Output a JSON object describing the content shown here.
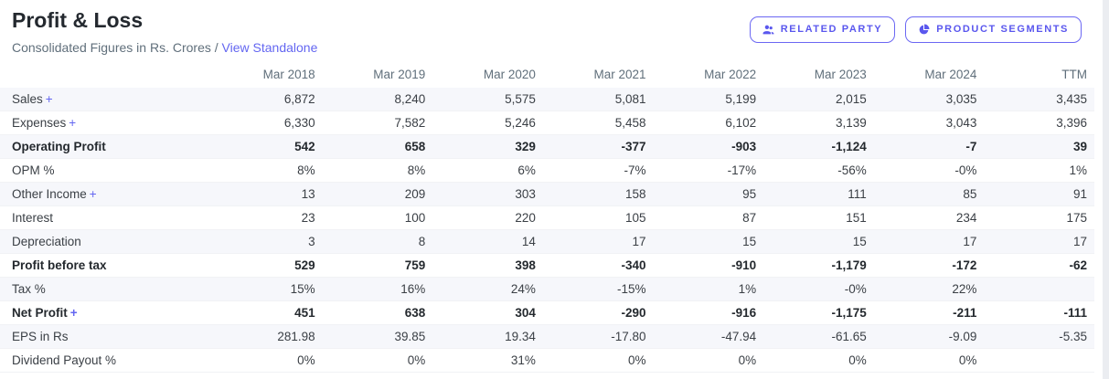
{
  "header": {
    "title": "Profit & Loss",
    "subtitle": "Consolidated Figures in Rs. Crores /",
    "standalone_link": "View Standalone",
    "buttons": [
      {
        "label": "RELATED PARTY",
        "icon": "users-icon"
      },
      {
        "label": "PRODUCT SEGMENTS",
        "icon": "pie-chart-icon"
      }
    ]
  },
  "colors": {
    "accent": "#6366f1",
    "row_stripe": "#f6f7fb",
    "button_border": "#6b67f3",
    "muted_text": "#606f7b"
  },
  "table": {
    "expand_symbol": "+",
    "columns": [
      "Mar 2018",
      "Mar 2019",
      "Mar 2020",
      "Mar 2021",
      "Mar 2022",
      "Mar 2023",
      "Mar 2024",
      "TTM"
    ],
    "rows": [
      {
        "label": "Sales",
        "expandable": true,
        "bold": false,
        "values": [
          "6,872",
          "8,240",
          "5,575",
          "5,081",
          "5,199",
          "2,015",
          "3,035",
          "3,435"
        ]
      },
      {
        "label": "Expenses",
        "expandable": true,
        "bold": false,
        "values": [
          "6,330",
          "7,582",
          "5,246",
          "5,458",
          "6,102",
          "3,139",
          "3,043",
          "3,396"
        ]
      },
      {
        "label": "Operating Profit",
        "expandable": false,
        "bold": true,
        "values": [
          "542",
          "658",
          "329",
          "-377",
          "-903",
          "-1,124",
          "-7",
          "39"
        ]
      },
      {
        "label": "OPM %",
        "expandable": false,
        "bold": false,
        "values": [
          "8%",
          "8%",
          "6%",
          "-7%",
          "-17%",
          "-56%",
          "-0%",
          "1%"
        ]
      },
      {
        "label": "Other Income",
        "expandable": true,
        "bold": false,
        "values": [
          "13",
          "209",
          "303",
          "158",
          "95",
          "111",
          "85",
          "91"
        ]
      },
      {
        "label": "Interest",
        "expandable": false,
        "bold": false,
        "values": [
          "23",
          "100",
          "220",
          "105",
          "87",
          "151",
          "234",
          "175"
        ]
      },
      {
        "label": "Depreciation",
        "expandable": false,
        "bold": false,
        "values": [
          "3",
          "8",
          "14",
          "17",
          "15",
          "15",
          "17",
          "17"
        ]
      },
      {
        "label": "Profit before tax",
        "expandable": false,
        "bold": true,
        "values": [
          "529",
          "759",
          "398",
          "-340",
          "-910",
          "-1,179",
          "-172",
          "-62"
        ]
      },
      {
        "label": "Tax %",
        "expandable": false,
        "bold": false,
        "values": [
          "15%",
          "16%",
          "24%",
          "-15%",
          "1%",
          "-0%",
          "22%",
          ""
        ]
      },
      {
        "label": "Net Profit",
        "expandable": true,
        "bold": true,
        "values": [
          "451",
          "638",
          "304",
          "-290",
          "-916",
          "-1,175",
          "-211",
          "-111"
        ]
      },
      {
        "label": "EPS in Rs",
        "expandable": false,
        "bold": false,
        "values": [
          "281.98",
          "39.85",
          "19.34",
          "-17.80",
          "-47.94",
          "-61.65",
          "-9.09",
          "-5.35"
        ]
      },
      {
        "label": "Dividend Payout %",
        "expandable": false,
        "bold": false,
        "values": [
          "0%",
          "0%",
          "31%",
          "0%",
          "0%",
          "0%",
          "0%",
          ""
        ]
      }
    ]
  }
}
